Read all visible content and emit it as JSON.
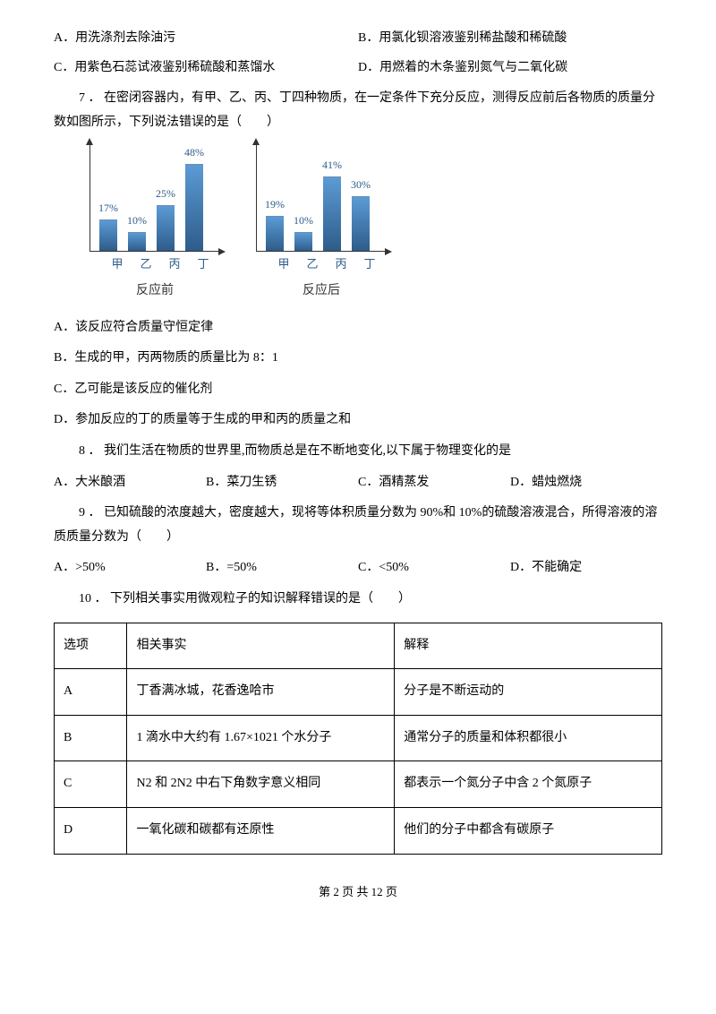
{
  "q6_options": {
    "a": "A．用洗涤剂去除油污",
    "b": "B．用氯化钡溶液鉴别稀盐酸和稀硫酸",
    "c": "C．用紫色石蕊试液鉴别稀硫酸和蒸馏水",
    "d": "D．用燃着的木条鉴别氮气与二氧化碳"
  },
  "q7": {
    "stem": "7 ． 在密闭容器内，有甲、乙、丙、丁四种物质，在一定条件下充分反应，测得反应前后各物质的质量分数如图所示，下列说法错误的是（　　）",
    "optA": "A．该反应符合质量守恒定律",
    "optB": "B．生成的甲，丙两物质的质量比为 8：1",
    "optC": "C．乙可能是该反应的催化剂",
    "optD": "D．参加反应的丁的质量等于生成的甲和丙的质量之和"
  },
  "charts": {
    "before": {
      "title": "反应前",
      "x": [
        "甲",
        "乙",
        "丙",
        "丁"
      ],
      "labels": [
        "17%",
        "10%",
        "25%",
        "48%"
      ],
      "heights": [
        34,
        20,
        50,
        96
      ],
      "bar_color_top": "#5b9bd5",
      "bar_color_bottom": "#2e5c8a"
    },
    "after": {
      "title": "反应后",
      "x": [
        "甲",
        "乙",
        "丙",
        "丁"
      ],
      "labels": [
        "19%",
        "10%",
        "41%",
        "30%"
      ],
      "heights": [
        38,
        20,
        82,
        60
      ],
      "bar_color_top": "#5b9bd5",
      "bar_color_bottom": "#2e5c8a"
    },
    "axis_color": "#333333",
    "label_color": "#2d5b8a",
    "label_fontsize": 12
  },
  "q8": {
    "stem": "8 ． 我们生活在物质的世界里,而物质总是在不断地变化,以下属于物理变化的是",
    "a": "A．大米酿酒",
    "b": "B．菜刀生锈",
    "c": "C．酒精蒸发",
    "d": "D．蜡烛燃烧"
  },
  "q9": {
    "stem": "9 ． 已知硫酸的浓度越大，密度越大，现将等体积质量分数为 90%和 10%的硫酸溶液混合，所得溶液的溶质质量分数为（　　）",
    "a": "A．>50%",
    "b": "B．=50%",
    "c": "C．<50%",
    "d": "D．不能确定"
  },
  "q10": {
    "stem": "10 ． 下列相关事实用微观粒子的知识解释错误的是（　　）",
    "headers": [
      "选项",
      "相关事实",
      "解释"
    ],
    "rows": [
      [
        "A",
        "丁香满冰城，花香逸哈市",
        "分子是不断运动的"
      ],
      [
        "B",
        "1 滴水中大约有 1.67×1021 个水分子",
        "通常分子的质量和体积都很小"
      ],
      [
        "C",
        "N2 和 2N2 中右下角数字意义相同",
        "都表示一个氮分子中含 2 个氮原子"
      ],
      [
        "D",
        "一氧化碳和碳都有还原性",
        "他们的分子中都含有碳原子"
      ]
    ]
  },
  "footer": "第 2 页 共 12 页"
}
